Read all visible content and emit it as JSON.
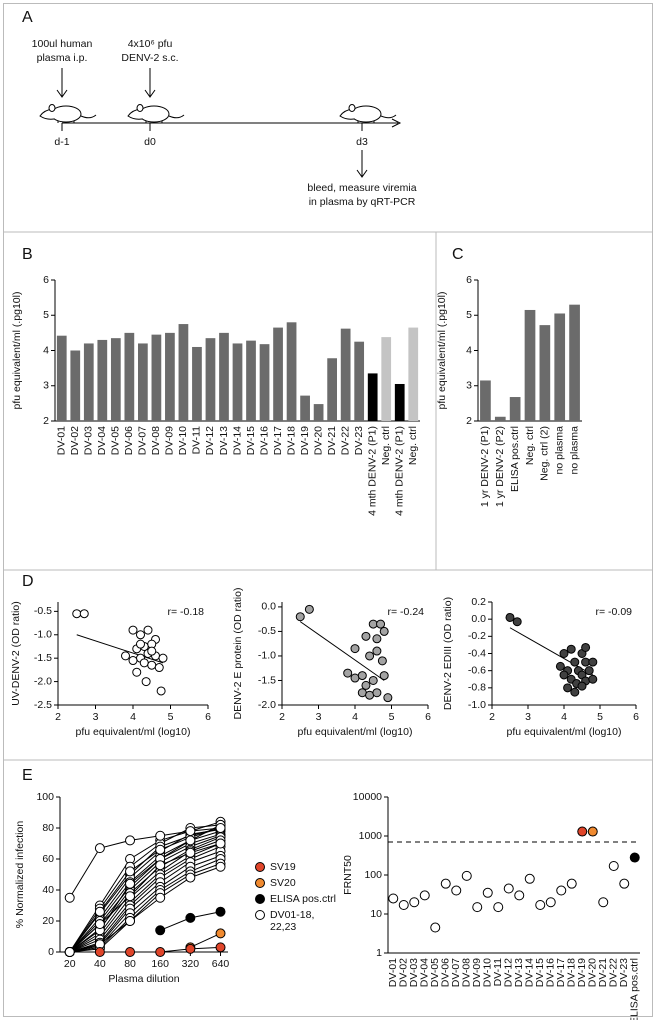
{
  "diagram": {
    "panel": "A",
    "plasma_text": [
      "100ul human",
      "plasma i.p."
    ],
    "virus_text": [
      "4x10⁶ pfu",
      "DENV-2 s.c."
    ],
    "days": [
      "d-1",
      "d0",
      "d3"
    ],
    "bleed_text": [
      "bleed, measure viremia",
      "in plasma by qRT-PCR"
    ]
  },
  "chart_data": [
    {
      "type": "bar",
      "panel": "B",
      "ylabel": "pfu equivalent/ml (.pg10l)",
      "categories": [
        "DV-01",
        "DV-02",
        "DV-03",
        "DV-04",
        "DV-05",
        "DV-06",
        "DV-07",
        "DV-08",
        "DV-09",
        "DV-10",
        "DV-11",
        "DV-12",
        "DV-13",
        "DV-14",
        "DV-15",
        "DV-16",
        "DV-17",
        "DV-18",
        "DV-19",
        "DV-20",
        "DV-21",
        "DV-22",
        "DV-23",
        "4 mth DENV-2 (P1)",
        "Neg. ctrl",
        "4 mth DENV-2 (P1)",
        "Neg. ctrl"
      ],
      "values": [
        4.42,
        4.0,
        4.2,
        4.3,
        4.35,
        4.5,
        4.2,
        4.45,
        4.5,
        4.75,
        4.1,
        4.35,
        4.5,
        4.2,
        4.28,
        4.18,
        4.65,
        4.8,
        2.72,
        2.48,
        3.78,
        4.62,
        4.25,
        3.35,
        4.38,
        3.05,
        4.65
      ],
      "colors": [
        "#6b6b6b",
        "#6b6b6b",
        "#6b6b6b",
        "#6b6b6b",
        "#6b6b6b",
        "#6b6b6b",
        "#6b6b6b",
        "#6b6b6b",
        "#6b6b6b",
        "#6b6b6b",
        "#6b6b6b",
        "#6b6b6b",
        "#6b6b6b",
        "#6b6b6b",
        "#6b6b6b",
        "#6b6b6b",
        "#6b6b6b",
        "#6b6b6b",
        "#6b6b6b",
        "#6b6b6b",
        "#6b6b6b",
        "#6b6b6b",
        "#6b6b6b",
        "#000000",
        "#c4c4c4",
        "#000000",
        "#c4c4c4"
      ],
      "ylim": [
        2,
        6
      ],
      "yticks": [
        2,
        3,
        4,
        5,
        6
      ]
    },
    {
      "type": "bar",
      "panel": "C",
      "ylabel": "pfu equivalent/ml (.pg10l)",
      "categories": [
        "1 yr DENV-2 (P1)",
        "1 yr DENV-2 (P2)",
        "ELISA pos.ctrl",
        "Neg. ctrl",
        "Neg. ctrl (2)",
        "no plasma",
        "no plasma"
      ],
      "values": [
        3.15,
        2.12,
        2.68,
        5.15,
        4.72,
        5.05,
        5.3
      ],
      "colors": [
        "#6b6b6b",
        "#6b6b6b",
        "#6b6b6b",
        "#6b6b6b",
        "#6b6b6b",
        "#6b6b6b",
        "#6b6b6b"
      ],
      "ylim": [
        2,
        6
      ],
      "yticks": [
        2,
        3,
        4,
        5,
        6
      ]
    },
    {
      "type": "scatter",
      "panel": "D",
      "ylabel": "UV-DENV-2 (OD ratio)",
      "xlabel": "pfu equivalent/ml (log10)",
      "annotation": "r= -0.18",
      "color": "#ffffff",
      "x": [
        2.5,
        2.7,
        4.0,
        4.2,
        4.4,
        4.6,
        3.8,
        4.1,
        4.3,
        4.5,
        4.2,
        4.4,
        4.6,
        4.3,
        4.5,
        4.7,
        4.1,
        4.75,
        4.35,
        4.0,
        4.8,
        4.5,
        4.2
      ],
      "y": [
        -0.55,
        -0.55,
        -0.9,
        -1.0,
        -0.9,
        -1.1,
        -1.45,
        -1.3,
        -1.25,
        -1.2,
        -1.5,
        -1.4,
        -1.45,
        -1.6,
        -1.65,
        -1.7,
        -1.8,
        -2.2,
        -2.0,
        -1.55,
        -1.5,
        -1.35,
        -1.2
      ],
      "fit": {
        "x": [
          2.5,
          4.8
        ],
        "y": [
          -1.0,
          -1.6
        ]
      },
      "xlim": [
        2,
        6
      ],
      "xticks": [
        2,
        3,
        4,
        5,
        6
      ],
      "ylim": [
        -2.5,
        -0.3
      ],
      "yticks": [
        -2.5,
        {
          "value": -2.0,
          "label": "-2.0"
        },
        -1.5,
        {
          "value": -1.0,
          "label": "-1.0"
        },
        -0.5
      ]
    },
    {
      "type": "scatter",
      "ylabel": "DENV-2 E protein (OD ratio)",
      "xlabel": "pfu equivalent/ml (log10)",
      "annotation": "r= -0.24",
      "color": "#a3a3a3",
      "x": [
        2.5,
        2.75,
        4.5,
        4.7,
        4.3,
        4.6,
        4.8,
        4.0,
        4.6,
        4.4,
        4.75,
        3.8,
        4.0,
        4.2,
        4.5,
        4.8,
        4.2,
        4.4,
        4.6,
        4.9,
        4.3
      ],
      "y": [
        -0.2,
        -0.05,
        -0.35,
        -0.35,
        -0.6,
        -0.65,
        -0.5,
        -0.85,
        -0.9,
        -1.0,
        -1.1,
        -1.35,
        -1.45,
        -1.4,
        -1.5,
        -1.4,
        -1.75,
        -1.8,
        -1.75,
        -1.85,
        -1.6
      ],
      "fit": {
        "x": [
          2.5,
          4.8
        ],
        "y": [
          -0.3,
          -1.5
        ]
      },
      "xlim": [
        2,
        6
      ],
      "xticks": [
        2,
        3,
        4,
        5,
        6
      ],
      "ylim": [
        -2.0,
        0.1
      ],
      "yticks": [
        {
          "value": -2.0,
          "label": "-2.0"
        },
        -1.5,
        {
          "value": -1.0,
          "label": "-1.0"
        },
        -0.5,
        {
          "value": 0,
          "label": "0.0"
        }
      ]
    },
    {
      "type": "scatter",
      "ylabel": "DENV-2 EDIII (OD ratio)",
      "xlabel": "pfu equivalent/ml (log10)",
      "annotation": "r= -0.09",
      "color": "#404040",
      "x": [
        2.5,
        2.7,
        4.0,
        4.2,
        4.5,
        4.6,
        4.3,
        4.6,
        4.8,
        3.9,
        4.1,
        4.4,
        4.5,
        4.2,
        4.35,
        4.6,
        4.8,
        4.1,
        4.3,
        4.5,
        4.0,
        4.7
      ],
      "y": [
        0.02,
        -0.03,
        -0.4,
        -0.35,
        -0.4,
        -0.33,
        -0.5,
        -0.5,
        -0.5,
        -0.55,
        -0.6,
        -0.6,
        -0.65,
        -0.7,
        -0.75,
        -0.72,
        -0.7,
        -0.8,
        -0.85,
        -0.78,
        -0.65,
        -0.6
      ],
      "fit": {
        "x": [
          2.5,
          4.8
        ],
        "y": [
          -0.1,
          -0.65
        ]
      },
      "xlim": [
        2,
        6
      ],
      "xticks": [
        2,
        3,
        4,
        5,
        6
      ],
      "ylim": [
        -1.0,
        0.2
      ],
      "yticks": [
        {
          "value": -1.0,
          "label": "-1.0"
        },
        -0.8,
        -0.6,
        -0.4,
        -0.2,
        {
          "value": 0,
          "label": "0.0"
        },
        0.2
      ]
    },
    {
      "type": "line",
      "panel": "E",
      "ylabel": "% Normalized infection",
      "xlabel": "Plasma dilution",
      "xlog": true,
      "x": [
        20,
        40,
        80,
        160,
        320,
        640
      ],
      "series": [
        {
          "name": "SV19",
          "color": "#e0452a",
          "values": [
            null,
            0,
            0,
            0,
            2,
            3
          ]
        },
        {
          "name": "SV20",
          "color": "#f08a30",
          "values": [
            null,
            null,
            null,
            null,
            3,
            12
          ]
        },
        {
          "name": "ELISA pos.ctrl",
          "color": "#000000",
          "values": [
            null,
            null,
            null,
            14,
            22,
            26
          ]
        },
        {
          "name": "DV01-18,\n22,23",
          "color": "#ffffff",
          "values": [
            [
              0,
              30,
              60,
              72,
              78,
              84
            ],
            [
              0,
              28,
              55,
              70,
              80,
              82
            ],
            [
              0,
              25,
              50,
              68,
              75,
              80
            ],
            [
              0,
              22,
              48,
              65,
              76,
              79
            ],
            [
              0,
              20,
              45,
              62,
              72,
              78
            ],
            [
              0,
              18,
              42,
              60,
              70,
              76
            ],
            [
              0,
              15,
              40,
              58,
              68,
              75
            ],
            [
              0,
              12,
              38,
              55,
              66,
              74
            ],
            [
              0,
              10,
              35,
              52,
              65,
              72
            ],
            [
              0,
              8,
              32,
              50,
              62,
              70
            ],
            [
              0,
              6,
              30,
              48,
              60,
              68
            ],
            [
              0,
              5,
              28,
              45,
              58,
              65
            ],
            [
              0,
              4,
              25,
              42,
              55,
              62
            ],
            [
              0,
              3,
              22,
              40,
              52,
              60
            ],
            [
              0,
              2,
              20,
              38,
              50,
              57
            ],
            [
              0,
              26,
              52,
              66,
              74,
              80
            ],
            [
              0,
              14,
              44,
              60,
              72,
              82
            ],
            [
              0,
              18,
              36,
              56,
              64,
              70
            ],
            [
              0,
              5,
              20,
              35,
              48,
              55
            ],
            [
              35,
              67,
              72,
              75,
              78,
              80
            ]
          ]
        }
      ],
      "xlim": [
        16,
        760
      ],
      "xticks": [
        20,
        40,
        80,
        160,
        320,
        640
      ],
      "ylim": [
        0,
        100
      ],
      "yticks": [
        0,
        20,
        40,
        60,
        80,
        100
      ]
    },
    {
      "type": "dot",
      "ylabel": "FRNT50",
      "ylog": true,
      "categories": [
        "DV-01",
        "DV-02",
        "DV-03",
        "DV-04",
        "DV-05",
        "DV-06",
        "DV-07",
        "DV-08",
        "DV-09",
        "DV-10",
        "DV-11",
        "DV-12",
        "DV-13",
        "DV-14",
        "DV-15",
        "DV-16",
        "DV-17",
        "DV-18",
        "DV-19",
        "DV-20",
        "DV-21",
        "DV-22",
        "DV-23",
        "ELISA pos.ctrl"
      ],
      "values": [
        25,
        17,
        20,
        30,
        4.5,
        60,
        40,
        95,
        15,
        35,
        15,
        45,
        30,
        80,
        17,
        20,
        40,
        60,
        1300,
        1300,
        20,
        170,
        60,
        280
      ],
      "colors": [
        "#ffffff",
        "#ffffff",
        "#ffffff",
        "#ffffff",
        "#ffffff",
        "#ffffff",
        "#ffffff",
        "#ffffff",
        "#ffffff",
        "#ffffff",
        "#ffffff",
        "#ffffff",
        "#ffffff",
        "#ffffff",
        "#ffffff",
        "#ffffff",
        "#ffffff",
        "#ffffff",
        "#e0452a",
        "#f08a30",
        "#ffffff",
        "#ffffff",
        "#ffffff",
        "#000000"
      ],
      "reference_line": 700,
      "ylim": [
        1,
        10000
      ],
      "yticks": [
        1,
        10,
        100,
        1000,
        10000
      ]
    }
  ]
}
